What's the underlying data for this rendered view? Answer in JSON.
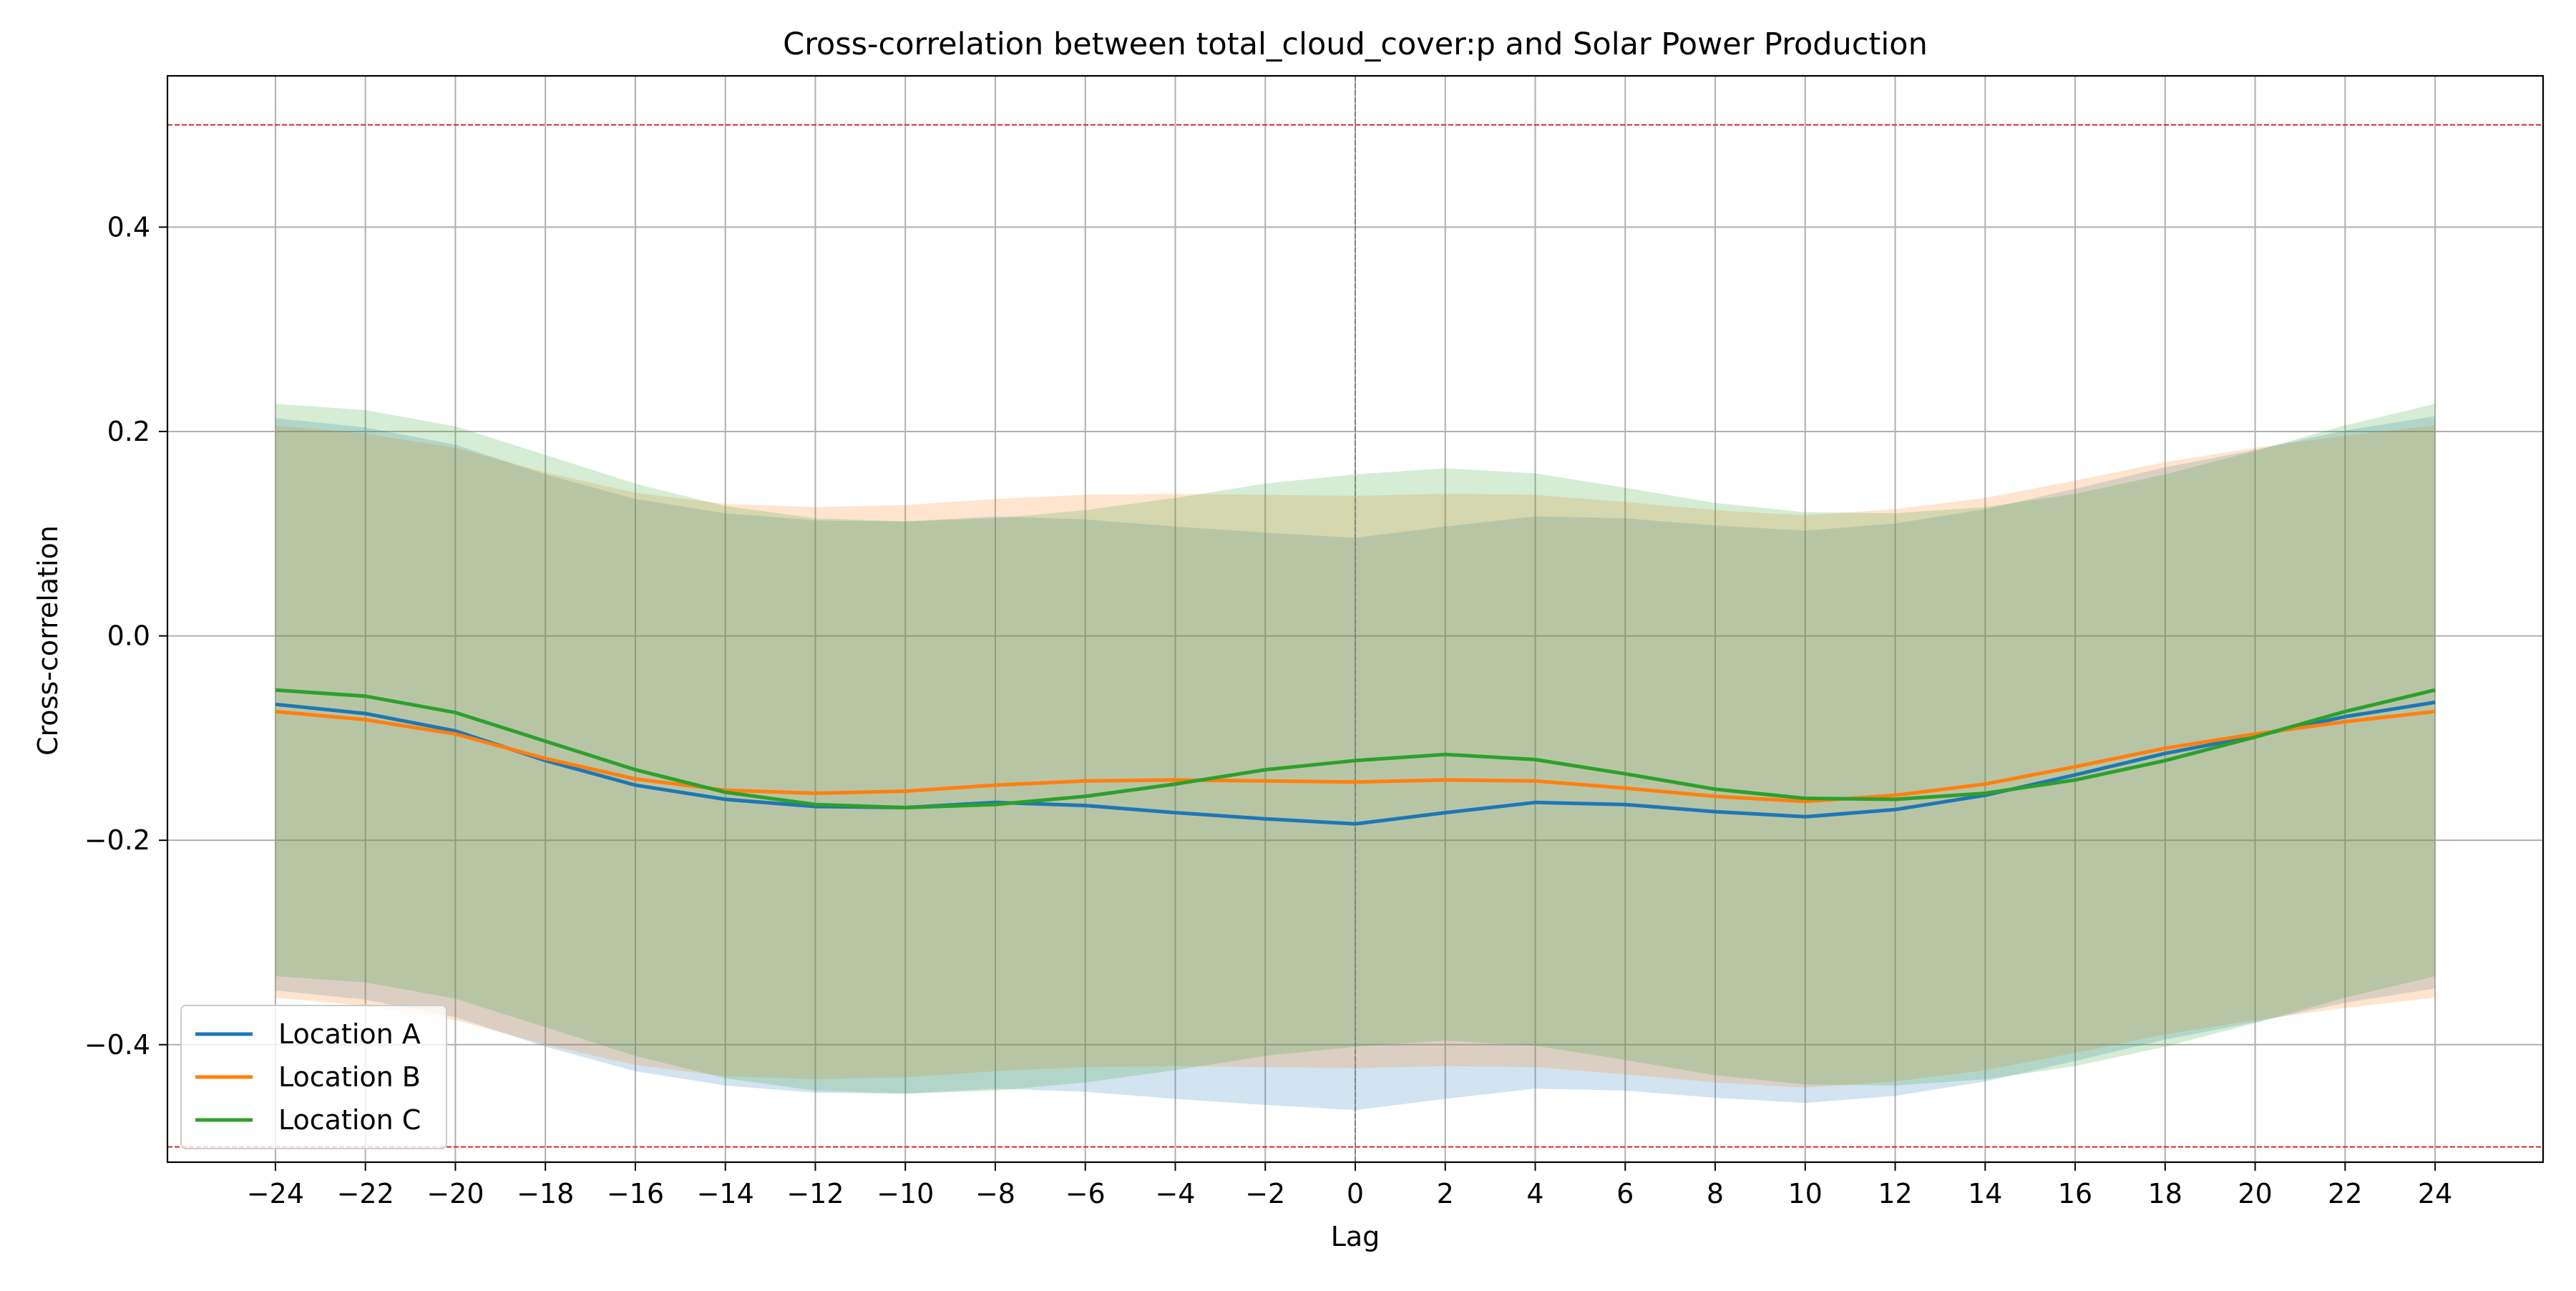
{
  "chart_data": {
    "type": "line",
    "title": "Cross-correlation between total_cloud_cover:p and Solar Power Production",
    "xlabel": "Lag",
    "ylabel": "Cross-correlation",
    "xlim": [
      -26.4,
      26.4
    ],
    "ylim": [
      -0.515,
      0.548
    ],
    "xticks": [
      -24,
      -22,
      -20,
      -18,
      -16,
      -14,
      -12,
      -10,
      -8,
      -6,
      -4,
      -2,
      0,
      2,
      4,
      6,
      8,
      10,
      12,
      14,
      16,
      18,
      20,
      22,
      24
    ],
    "xtick_labels": [
      "−24",
      "−22",
      "−20",
      "−18",
      "−16",
      "−14",
      "−12",
      "−10",
      "−8",
      "−6",
      "−4",
      "−2",
      "0",
      "2",
      "4",
      "6",
      "8",
      "10",
      "12",
      "14",
      "16",
      "18",
      "20",
      "22",
      "24"
    ],
    "yticks": [
      -0.4,
      -0.2,
      0.0,
      0.2,
      0.4
    ],
    "ytick_labels": [
      "−0.4",
      "−0.2",
      "0.0",
      "0.2",
      "0.4"
    ],
    "grid": true,
    "legend_position": "lower-left",
    "reference_lines": {
      "horizontal": [
        0.5,
        -0.5
      ],
      "horizontal_color": "#d62728",
      "vertical": [
        0
      ],
      "vertical_color": "#808080"
    },
    "x": [
      -24,
      -22,
      -20,
      -18,
      -16,
      -14,
      -12,
      -10,
      -8,
      -6,
      -4,
      -2,
      0,
      2,
      4,
      6,
      8,
      10,
      12,
      14,
      16,
      18,
      20,
      22,
      24
    ],
    "series": [
      {
        "name": "Location A",
        "color": "#1f77b4",
        "values": [
          -0.067,
          -0.076,
          -0.093,
          -0.122,
          -0.146,
          -0.16,
          -0.167,
          -0.168,
          -0.163,
          -0.166,
          -0.173,
          -0.179,
          -0.184,
          -0.173,
          -0.163,
          -0.165,
          -0.172,
          -0.177,
          -0.17,
          -0.156,
          -0.136,
          -0.115,
          -0.098,
          -0.079,
          -0.065
        ],
        "upper": [
          0.213,
          0.204,
          0.187,
          0.158,
          0.134,
          0.12,
          0.113,
          0.112,
          0.117,
          0.114,
          0.107,
          0.101,
          0.096,
          0.107,
          0.117,
          0.115,
          0.108,
          0.103,
          0.11,
          0.124,
          0.144,
          0.165,
          0.182,
          0.201,
          0.215
        ],
        "lower": [
          -0.347,
          -0.356,
          -0.373,
          -0.402,
          -0.426,
          -0.44,
          -0.447,
          -0.448,
          -0.443,
          -0.446,
          -0.453,
          -0.459,
          -0.464,
          -0.453,
          -0.443,
          -0.445,
          -0.452,
          -0.457,
          -0.45,
          -0.436,
          -0.416,
          -0.395,
          -0.378,
          -0.359,
          -0.345
        ]
      },
      {
        "name": "Location B",
        "color": "#ff7f0e",
        "values": [
          -0.074,
          -0.082,
          -0.096,
          -0.12,
          -0.14,
          -0.151,
          -0.154,
          -0.152,
          -0.146,
          -0.142,
          -0.141,
          -0.142,
          -0.143,
          -0.141,
          -0.142,
          -0.149,
          -0.157,
          -0.162,
          -0.156,
          -0.145,
          -0.128,
          -0.11,
          -0.096,
          -0.084,
          -0.074
        ],
        "upper": [
          0.206,
          0.198,
          0.184,
          0.16,
          0.14,
          0.129,
          0.126,
          0.128,
          0.134,
          0.138,
          0.139,
          0.138,
          0.137,
          0.139,
          0.138,
          0.131,
          0.123,
          0.118,
          0.124,
          0.135,
          0.152,
          0.17,
          0.184,
          0.196,
          0.206
        ],
        "lower": [
          -0.354,
          -0.362,
          -0.376,
          -0.4,
          -0.42,
          -0.431,
          -0.434,
          -0.432,
          -0.426,
          -0.422,
          -0.421,
          -0.422,
          -0.423,
          -0.421,
          -0.422,
          -0.429,
          -0.437,
          -0.442,
          -0.436,
          -0.425,
          -0.408,
          -0.39,
          -0.376,
          -0.364,
          -0.354
        ]
      },
      {
        "name": "Location C",
        "color": "#2ca02c",
        "values": [
          -0.053,
          -0.059,
          -0.075,
          -0.103,
          -0.131,
          -0.153,
          -0.165,
          -0.168,
          -0.165,
          -0.157,
          -0.145,
          -0.131,
          -0.122,
          -0.116,
          -0.121,
          -0.135,
          -0.15,
          -0.159,
          -0.16,
          -0.154,
          -0.141,
          -0.122,
          -0.099,
          -0.074,
          -0.053
        ],
        "upper": [
          0.227,
          0.221,
          0.205,
          0.177,
          0.149,
          0.127,
          0.115,
          0.112,
          0.115,
          0.123,
          0.135,
          0.149,
          0.158,
          0.164,
          0.159,
          0.145,
          0.13,
          0.121,
          0.12,
          0.126,
          0.139,
          0.158,
          0.181,
          0.206,
          0.227
        ],
        "lower": [
          -0.333,
          -0.339,
          -0.355,
          -0.383,
          -0.411,
          -0.433,
          -0.445,
          -0.448,
          -0.445,
          -0.437,
          -0.425,
          -0.411,
          -0.402,
          -0.396,
          -0.401,
          -0.415,
          -0.43,
          -0.439,
          -0.44,
          -0.434,
          -0.421,
          -0.402,
          -0.379,
          -0.354,
          -0.333
        ]
      }
    ]
  }
}
